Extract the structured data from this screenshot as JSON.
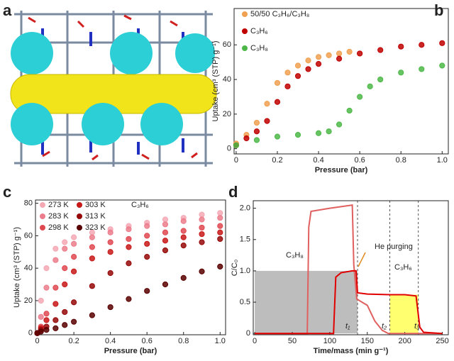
{
  "panel_a": {
    "label": "a"
  },
  "chart_data": [
    {
      "type": "scatter",
      "panel": "b",
      "xlabel": "Pressure (bar)",
      "ylabel": "Uptake (cm³ (STP) g⁻¹)",
      "xlim": [
        -0.01,
        1.03
      ],
      "ylim": [
        -3,
        81
      ],
      "xticks": [
        0,
        0.2,
        0.4,
        0.6,
        0.8,
        {
          "value": 1,
          "label": "1.0"
        }
      ],
      "yticks": [
        0,
        20,
        40,
        60
      ],
      "series": [
        {
          "name": "50/50 C₃H₆/C₃H₈",
          "color": "#f0a050",
          "x": [
            0,
            0.05,
            0.1,
            0.15,
            0.2,
            0.25,
            0.3,
            0.35,
            0.4,
            0.45,
            0.5,
            0.55
          ],
          "values": [
            3,
            8,
            15,
            26,
            38,
            44,
            48,
            51,
            53,
            54,
            55,
            56
          ]
        },
        {
          "name": "C₃H₆",
          "color": "#c00000",
          "x": [
            0,
            0.05,
            0.1,
            0.15,
            0.2,
            0.25,
            0.3,
            0.35,
            0.4,
            0.5,
            0.6,
            0.7,
            0.8,
            0.9,
            1.0
          ],
          "values": [
            2,
            6,
            10,
            16,
            27,
            36,
            42,
            46,
            49,
            52,
            55,
            57,
            59,
            60,
            61
          ]
        },
        {
          "name": "C₃H₈",
          "color": "#4db848",
          "x": [
            0,
            0.1,
            0.2,
            0.3,
            0.4,
            0.45,
            0.5,
            0.55,
            0.6,
            0.65,
            0.7,
            0.8,
            0.9,
            1.0
          ],
          "values": [
            2,
            5,
            7,
            8,
            9,
            10,
            14,
            22,
            30,
            36,
            40,
            44,
            46,
            48
          ]
        }
      ]
    },
    {
      "type": "scatter",
      "panel": "c",
      "xlabel": "Pressure (bar)",
      "ylabel": "Uptake (cm³ (STP) g⁻¹)",
      "annotations": [
        "C₃H₆"
      ],
      "xlim": [
        -0.01,
        1.03
      ],
      "ylim": [
        -1,
        82
      ],
      "xticks": [
        0,
        0.2,
        0.4,
        0.6,
        0.8,
        {
          "value": 1,
          "label": "1.0"
        }
      ],
      "yticks": [
        0,
        20,
        40,
        60,
        80
      ],
      "series": [
        {
          "name": "273 K",
          "color": "#f4a8b4",
          "x": [
            0,
            0.02,
            0.05,
            0.1,
            0.15,
            0.2,
            0.3,
            0.4,
            0.5,
            0.6,
            0.7,
            0.8,
            0.9,
            1.0
          ],
          "values": [
            0,
            20,
            40,
            52,
            56,
            59,
            62,
            64,
            66,
            68,
            70,
            71,
            73,
            74
          ]
        },
        {
          "name": "283 K",
          "color": "#ec7c8c",
          "x": [
            0,
            0.02,
            0.05,
            0.1,
            0.15,
            0.2,
            0.3,
            0.4,
            0.5,
            0.6,
            0.7,
            0.8,
            0.9,
            1.0
          ],
          "values": [
            0,
            10,
            28,
            45,
            52,
            55,
            59,
            62,
            64,
            66,
            67,
            69,
            70,
            71
          ]
        },
        {
          "name": "298 K",
          "color": "#e04850",
          "x": [
            0,
            0.02,
            0.05,
            0.1,
            0.15,
            0.2,
            0.3,
            0.4,
            0.5,
            0.6,
            0.7,
            0.8,
            0.9,
            1.0
          ],
          "values": [
            0,
            4,
            12,
            28,
            40,
            47,
            53,
            56,
            58,
            60,
            62,
            63,
            65,
            66
          ]
        },
        {
          "name": "303 K",
          "color": "#c81818",
          "x": [
            0,
            0.02,
            0.05,
            0.1,
            0.15,
            0.2,
            0.3,
            0.4,
            0.5,
            0.6,
            0.7,
            0.8,
            0.9,
            1.0
          ],
          "values": [
            0,
            3,
            8,
            18,
            30,
            38,
            46,
            50,
            53,
            55,
            57,
            59,
            61,
            62
          ]
        },
        {
          "name": "313 K",
          "color": "#960808",
          "x": [
            0,
            0.02,
            0.05,
            0.1,
            0.15,
            0.2,
            0.3,
            0.4,
            0.5,
            0.6,
            0.7,
            0.8,
            0.9,
            1.0
          ],
          "values": [
            0,
            2,
            4,
            8,
            13,
            19,
            29,
            37,
            43,
            47,
            51,
            54,
            56,
            58
          ]
        },
        {
          "name": "323 K",
          "color": "#5a0000",
          "x": [
            0,
            0.02,
            0.05,
            0.1,
            0.15,
            0.2,
            0.3,
            0.4,
            0.5,
            0.6,
            0.7,
            0.8,
            0.9,
            1.0
          ],
          "values": [
            0,
            1,
            2,
            3,
            5,
            7,
            11,
            16,
            21,
            26,
            30,
            34,
            38,
            41
          ]
        }
      ]
    },
    {
      "type": "line",
      "panel": "d",
      "xlabel": "Time/mass (min g⁻¹)",
      "ylabel": "C/C₀",
      "annotations": [
        "C₃H₈",
        "He purging",
        "C₃H₆",
        "t₁",
        "t₂",
        "t₃"
      ],
      "xlim": [
        -2,
        258
      ],
      "ylim": [
        -0.02,
        2.12
      ],
      "xticks": [
        0,
        50,
        100,
        150,
        200,
        250
      ],
      "yticks": [
        0,
        0.5,
        {
          "value": 1,
          "label": "1.0"
        },
        1.5,
        {
          "value": 2,
          "label": "2.0"
        }
      ],
      "regions": [
        {
          "x": [
            0,
            137
          ],
          "y": 1,
          "color": "#bdbdbd"
        },
        {
          "x": [
            180,
            218
          ],
          "y": 0.62,
          "color": "#ffff70"
        }
      ],
      "vlines": [
        137,
        180,
        218
      ],
      "series": [
        {
          "name": "C₃H₈",
          "color": "#e06060",
          "x": [
            0,
            70,
            72,
            75,
            100,
            130,
            132,
            136,
            150,
            160,
            170,
            178,
            250
          ],
          "values": [
            0,
            0,
            1.7,
            1.95,
            2.0,
            2.05,
            1.1,
            0.55,
            0.45,
            0.2,
            0.05,
            0,
            0
          ]
        },
        {
          "name": "C₃H₆",
          "color": "#e00000",
          "x": [
            0,
            105,
            108,
            115,
            130,
            135,
            137,
            150,
            180,
            200,
            215,
            220,
            225,
            250
          ],
          "values": [
            0,
            0,
            0.9,
            0.97,
            1.0,
            1.0,
            0.65,
            0.63,
            0.62,
            0.62,
            0.6,
            0.1,
            0.02,
            0
          ]
        }
      ]
    }
  ]
}
